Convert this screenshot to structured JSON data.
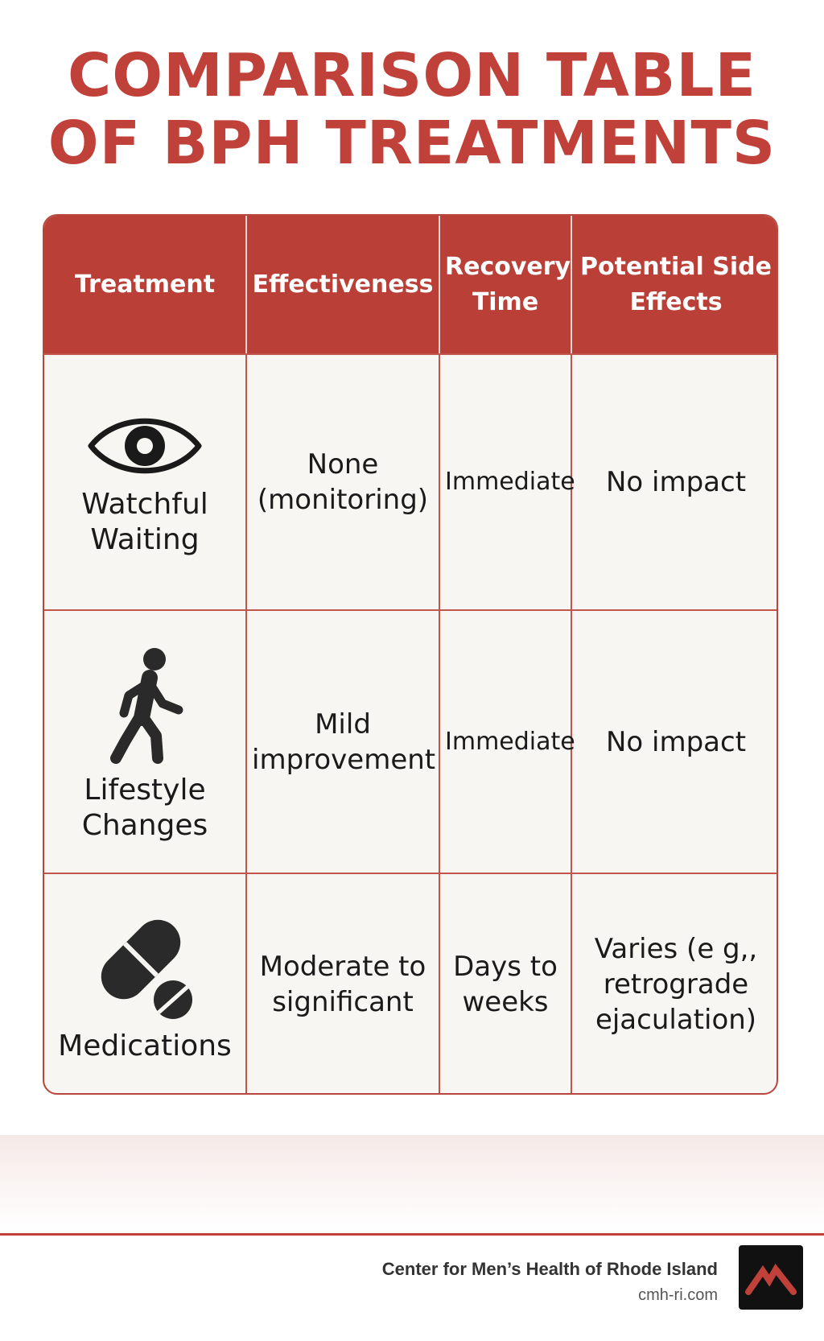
{
  "title_line1": "COMPARISON TABLE",
  "title_line2": "OF BPH TREATMENTS",
  "table": {
    "headers": [
      "Treatment",
      "Effectiveness",
      "Recovery Time",
      "Potential Side Effects"
    ],
    "rows": [
      {
        "icon": "eye-icon",
        "treatment": "Watchful Waiting",
        "effectiveness": "None (monitoring)",
        "recovery": "Immediate",
        "side_effects": "No impact"
      },
      {
        "icon": "walking-person-icon",
        "treatment": "Lifestyle Changes",
        "effectiveness": "Mild improvement",
        "recovery": "Immediate",
        "side_effects": "No impact"
      },
      {
        "icon": "pill-capsule-icon",
        "treatment": "Medications",
        "effectiveness": "Moderate to significant",
        "recovery": "Days to weeks",
        "side_effects": "Varies (e g,, retrograde ejaculation)"
      }
    ]
  },
  "footer": {
    "organization": "Center for Men’s Health of Rhode Island",
    "website": "cmh-ri.com",
    "logo_icon": "mountain-logo-icon"
  },
  "colors": {
    "accent": "#c0413a",
    "header_bg": "#b93f37",
    "cell_bg": "#f8f6f2"
  }
}
